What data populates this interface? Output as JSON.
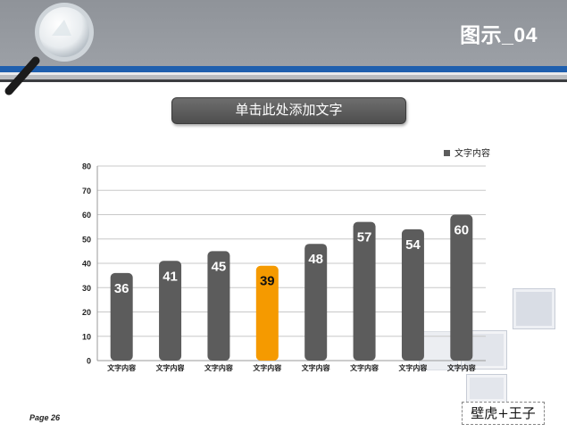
{
  "slide": {
    "title": "图示_04",
    "subtitle": "单击此处添加文字",
    "page_label": "Page",
    "page_number": "26",
    "watermark": "壁虎+王子"
  },
  "colors": {
    "header": "#9ca0a6",
    "accent_line": "#1f5fae",
    "bar": "#5c5c5c",
    "highlight_bar": "#f59a00"
  },
  "chart_data": {
    "type": "bar",
    "title": "",
    "xlabel": "",
    "ylabel": "",
    "categories": [
      "文字内容",
      "文字内容",
      "文字内容",
      "文字内容",
      "文字内容",
      "文字内容",
      "文字内容",
      "文字内容"
    ],
    "series": [
      {
        "name": "文字内容",
        "values": [
          36,
          41,
          45,
          39,
          48,
          57,
          54,
          60
        ]
      }
    ],
    "highlight_index": 3,
    "ylim": [
      0,
      80
    ],
    "yticks": [
      0,
      10,
      20,
      30,
      40,
      50,
      60,
      70,
      80
    ],
    "grid": true,
    "legend": "top-right",
    "data_labels": true
  }
}
